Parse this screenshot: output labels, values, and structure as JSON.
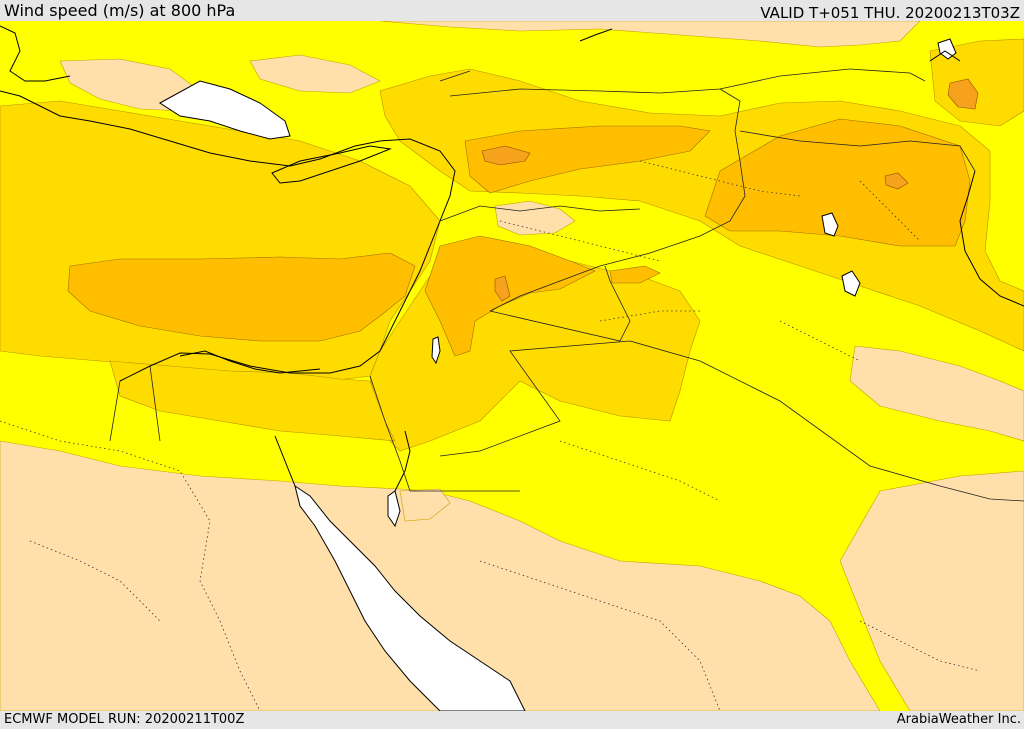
{
  "header": {
    "title": "Wind speed (m/s) at 800 hPa",
    "valid_time": "VALID T+051 THU. 20200213T03Z"
  },
  "footer": {
    "model_run": "ECMWF MODEL RUN: 20200211T00Z",
    "credit": "ArabiaWeather Inc."
  },
  "colors": {
    "calm": "#ffe0aa",
    "light": "#ffff00",
    "moderate": "#ffdc00",
    "strong": "#ffbf00",
    "very_strong": "#f7a21c",
    "water": "#ffffff",
    "frame": "#e6e6e6",
    "border_line": "#222222"
  }
}
